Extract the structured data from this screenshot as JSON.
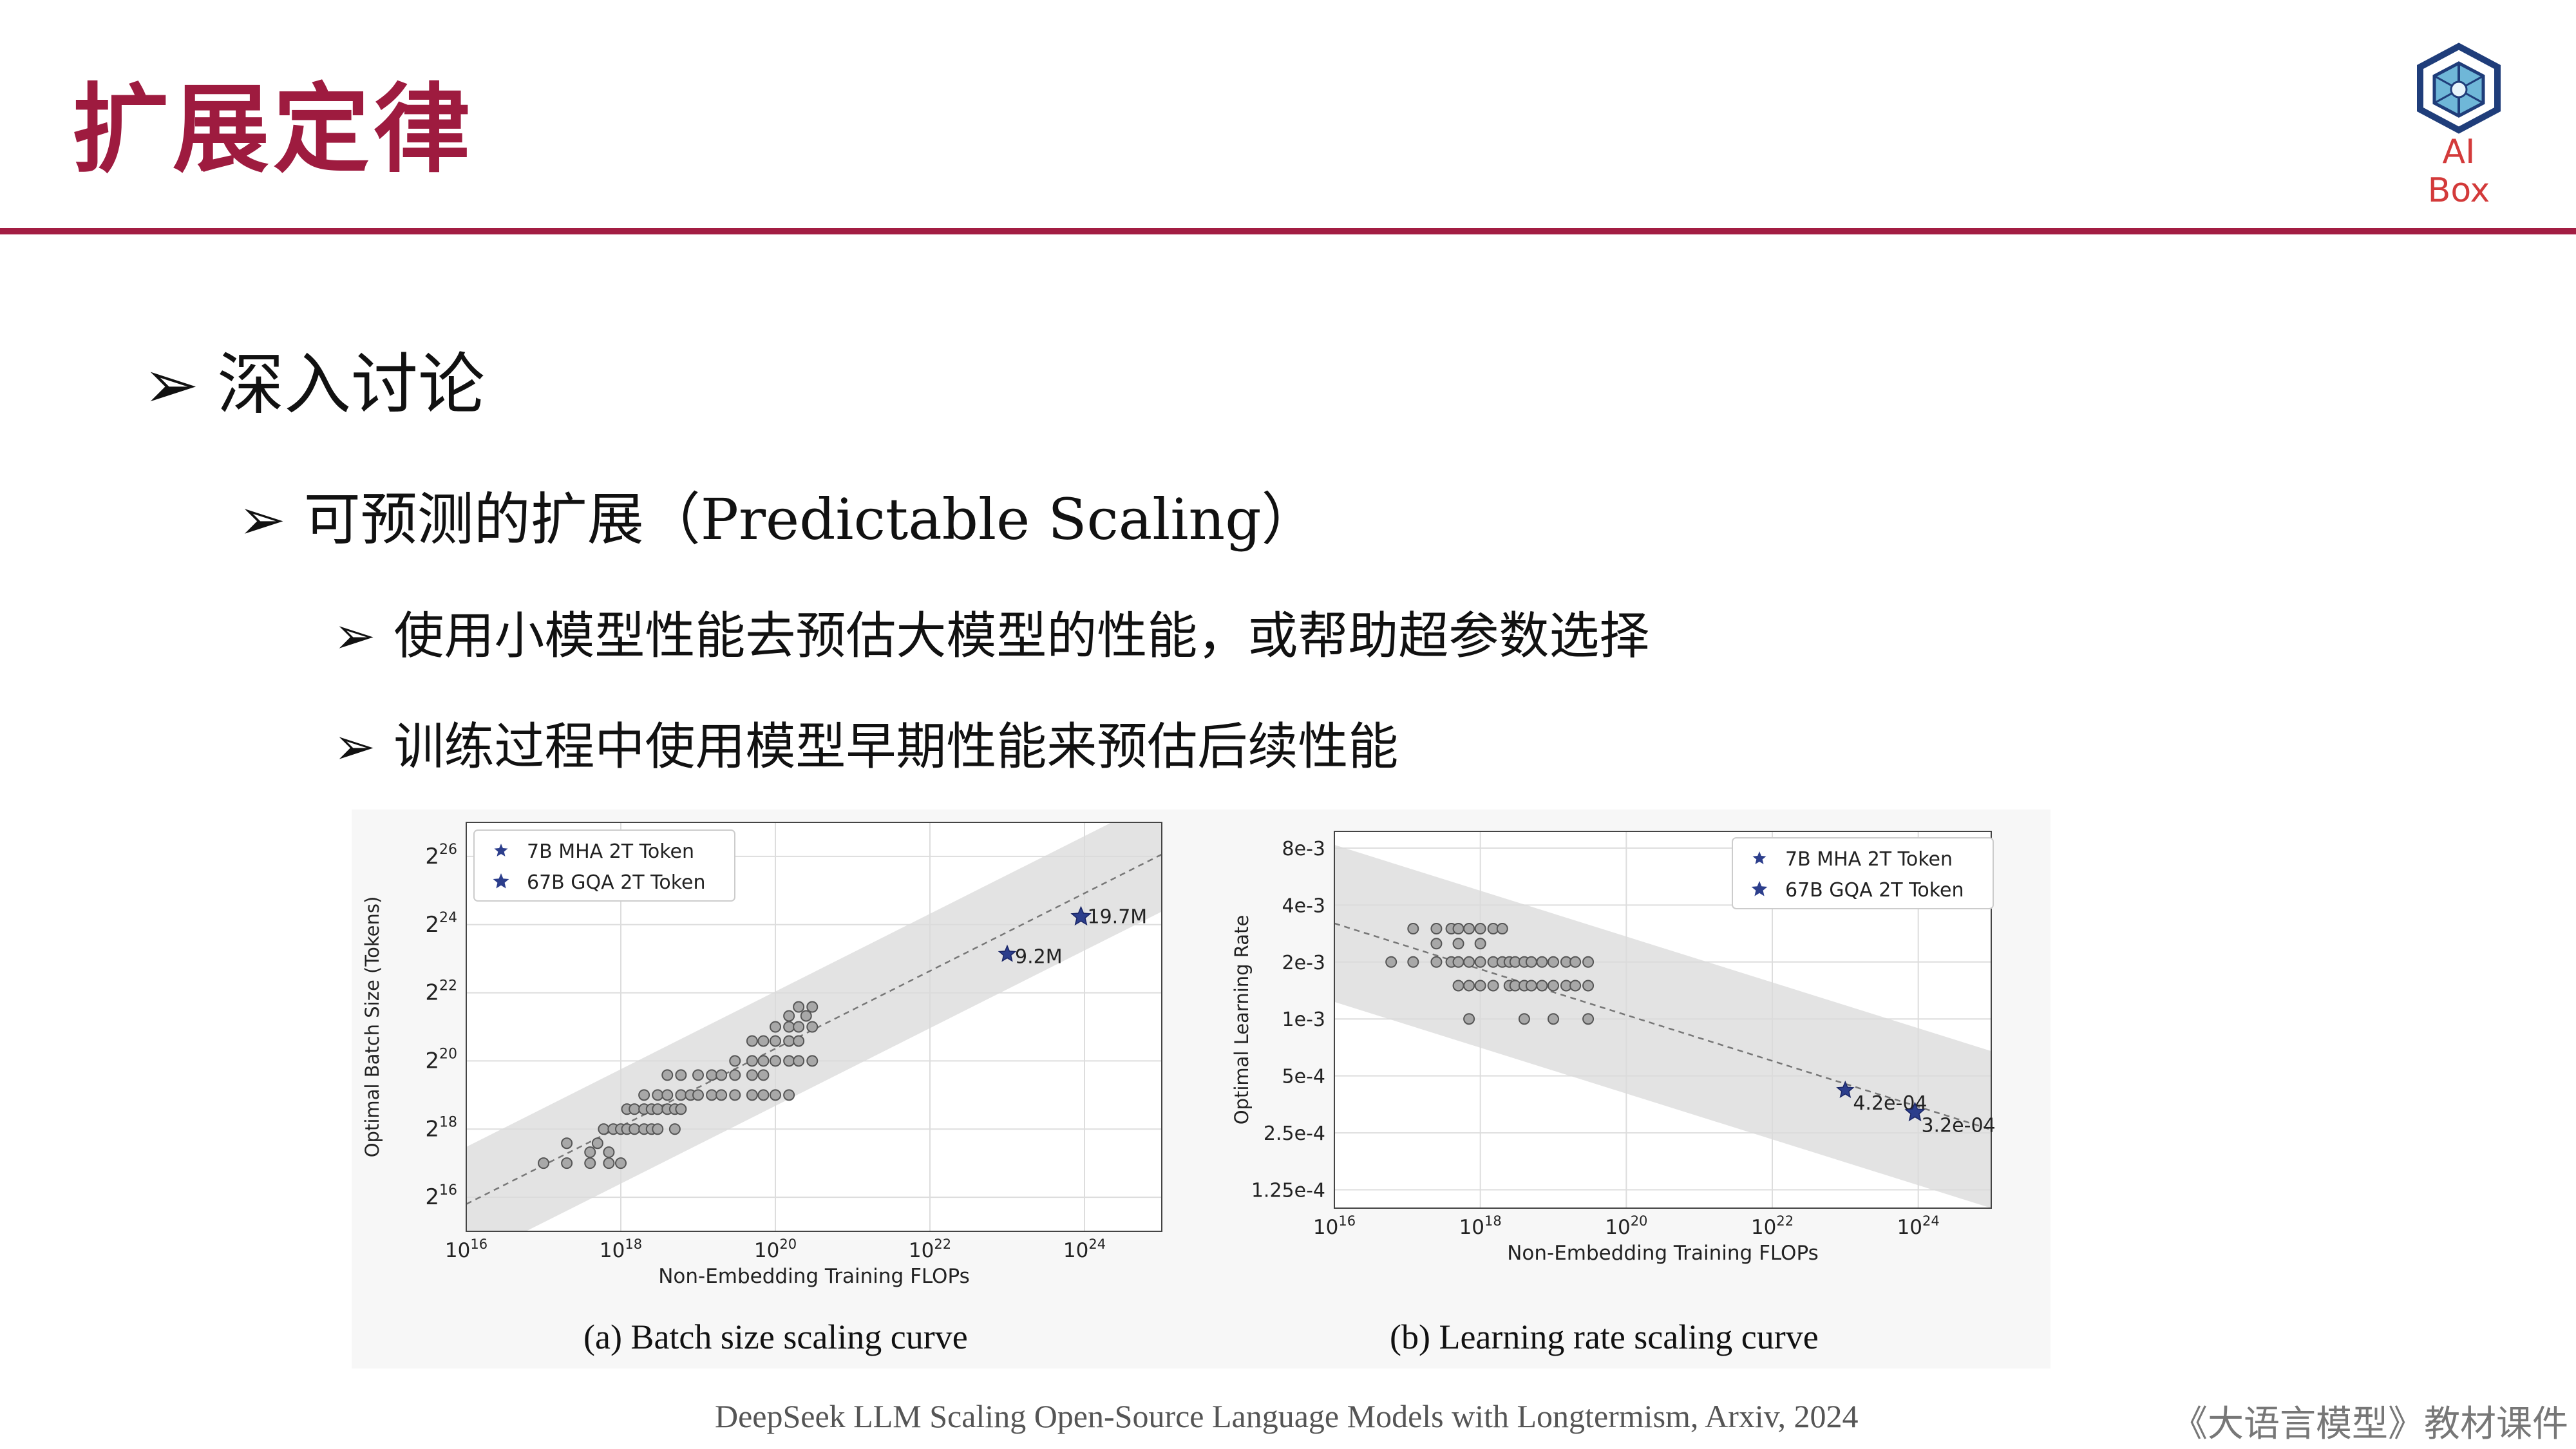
{
  "slide": {
    "title": "扩展定律",
    "logo_text": "AI Box",
    "bullet1": "深入讨论",
    "bullet2": "可预测的扩展（Predictable Scaling）",
    "bullet3": "使用小模型性能去预估大模型的性能，或帮助超参数选择",
    "bullet4": "训练过程中使用模型早期性能来预估后续性能",
    "arrow": "➢",
    "caption_a": "(a)  Batch size scaling curve",
    "caption_b": "(b)  Learning rate scaling curve",
    "source": "DeepSeek LLM Scaling Open-Source Language Models with Longtermism, Arxiv, 2024",
    "footer": "《大语言模型》教材课件"
  },
  "colors": {
    "title": "#9e1b3f",
    "rule": "#a31d43",
    "star": "#2c3e8c",
    "band": "#d9d9d9",
    "point": "#a8a8a8"
  },
  "chart_data": [
    {
      "type": "scatter",
      "xlabel": "Non-Embedding Training FLOPs",
      "ylabel": "Optimal Batch Size (Tokens)",
      "x_scale": "log10",
      "y_scale": "log2",
      "xlim": [
        1e+16,
        1e+25
      ],
      "ylim": [
        32768,
        134217728
      ],
      "xticks": [
        1e+16,
        1e+18,
        1e+20,
        1e+22,
        1e+24
      ],
      "xtick_labels": [
        "10",
        "10",
        "10",
        "10",
        "10"
      ],
      "xtick_exps": [
        "16",
        "18",
        "20",
        "22",
        "24"
      ],
      "yticks": [
        65536,
        262144,
        1048576,
        4194304,
        16777216,
        67108864
      ],
      "ytick_labels": [
        "2",
        "2",
        "2",
        "2",
        "2",
        "2"
      ],
      "ytick_exps": [
        "16",
        "18",
        "20",
        "22",
        "24",
        "26"
      ],
      "grid": true,
      "legend_position": "top-left",
      "series": [
        {
          "name": "7B MHA 2T Token",
          "marker": "star",
          "points": [
            [
              1e+23,
              9200000.0
            ]
          ],
          "labels": [
            "9.2M"
          ]
        },
        {
          "name": "67B GQA 2T Token",
          "marker": "star",
          "points": [
            [
              9e+23,
              19700000.0
            ]
          ],
          "labels": [
            "19.7M"
          ]
        }
      ],
      "grid_points": [
        [
          1e+17,
          131072
        ],
        [
          2e+17,
          131072
        ],
        [
          4e+17,
          131072
        ],
        [
          7e+17,
          131072
        ],
        [
          1e+18,
          131072
        ],
        [
          2e+17,
          196608
        ],
        [
          4e+17,
          163840
        ],
        [
          5e+17,
          196608
        ],
        [
          7e+17,
          163840
        ],
        [
          6e+17,
          262144
        ],
        [
          8e+17,
          262144
        ],
        [
          1e+18,
          262144
        ],
        [
          1.2e+18,
          262144
        ],
        [
          1.5e+18,
          262144
        ],
        [
          2e+18,
          262144
        ],
        [
          2.5e+18,
          262144
        ],
        [
          3e+18,
          262144
        ],
        [
          5e+18,
          262144
        ],
        [
          1.2e+18,
          393216
        ],
        [
          1.5e+18,
          393216
        ],
        [
          2e+18,
          393216
        ],
        [
          2.5e+18,
          393216
        ],
        [
          3e+18,
          393216
        ],
        [
          4e+18,
          393216
        ],
        [
          5e+18,
          393216
        ],
        [
          6e+18,
          393216
        ],
        [
          2e+18,
          524288
        ],
        [
          3e+18,
          524288
        ],
        [
          4e+18,
          524288
        ],
        [
          6e+18,
          524288
        ],
        [
          8e+18,
          524288
        ],
        [
          1e+19,
          524288
        ],
        [
          1.5e+19,
          524288
        ],
        [
          2e+19,
          524288
        ],
        [
          3e+19,
          524288
        ],
        [
          5e+19,
          524288
        ],
        [
          7e+19,
          524288
        ],
        [
          1e+20,
          524288
        ],
        [
          1.5e+20,
          524288
        ],
        [
          4e+18,
          786432
        ],
        [
          6e+18,
          786432
        ],
        [
          1e+19,
          786432
        ],
        [
          1.5e+19,
          786432
        ],
        [
          2e+19,
          786432
        ],
        [
          3e+19,
          786432
        ],
        [
          5e+19,
          786432
        ],
        [
          7e+19,
          786432
        ],
        [
          3e+19,
          1048576
        ],
        [
          5e+19,
          1048576
        ],
        [
          7e+19,
          1048576
        ],
        [
          1e+20,
          1048576
        ],
        [
          1.5e+20,
          1048576
        ],
        [
          2e+20,
          1048576
        ],
        [
          3e+20,
          1048576
        ],
        [
          5e+19,
          1572864
        ],
        [
          7e+19,
          1572864
        ],
        [
          1e+20,
          1572864
        ],
        [
          1.5e+20,
          1572864
        ],
        [
          2e+20,
          1572864
        ],
        [
          1e+20,
          2097152
        ],
        [
          1.5e+20,
          2097152
        ],
        [
          2e+20,
          2097152
        ],
        [
          3e+20,
          2097152
        ],
        [
          2e+20,
          3145728
        ],
        [
          3e+20,
          3145728
        ],
        [
          1.5e+20,
          2621440
        ],
        [
          2.5e+20,
          2621440
        ]
      ],
      "fit_line": [
        [
          1e+16,
          57000
        ],
        [
          1e+25,
          70000000
        ]
      ],
      "band_width_factor": 3.2
    },
    {
      "type": "scatter",
      "xlabel": "Non-Embedding Training FLOPs",
      "ylabel": "Optimal Learning Rate",
      "x_scale": "log10",
      "y_scale": "log2",
      "xlim": [
        1e+16,
        1e+25
      ],
      "ylim": [
        0.0001,
        0.0098
      ],
      "xticks": [
        1e+16,
        1e+18,
        1e+20,
        1e+22,
        1e+24
      ],
      "xtick_labels": [
        "10",
        "10",
        "10",
        "10",
        "10"
      ],
      "xtick_exps": [
        "16",
        "18",
        "20",
        "22",
        "24"
      ],
      "yticks": [
        0.000125,
        0.00025,
        0.0005,
        0.001,
        0.002,
        0.004,
        0.008
      ],
      "ytick_labels": [
        "1.25e-4",
        "2.5e-4",
        "5e-4",
        "1e-3",
        "2e-3",
        "4e-3",
        "8e-3"
      ],
      "grid": true,
      "legend_position": "top-right",
      "series": [
        {
          "name": "7B MHA 2T Token",
          "marker": "star",
          "points": [
            [
              1e+23,
              0.00042
            ]
          ],
          "labels": [
            "4.2e-04"
          ]
        },
        {
          "name": "67B GQA 2T Token",
          "marker": "star",
          "points": [
            [
              9e+23,
              0.00032
            ]
          ],
          "labels": [
            "3.2e-04"
          ]
        }
      ],
      "grid_points": [
        [
          6e+16,
          0.002
        ],
        [
          1.2e+17,
          0.002
        ],
        [
          2.5e+17,
          0.002
        ],
        [
          4e+17,
          0.002
        ],
        [
          5e+17,
          0.002
        ],
        [
          7e+17,
          0.002
        ],
        [
          1e+18,
          0.002
        ],
        [
          1.5e+18,
          0.002
        ],
        [
          2e+18,
          0.002
        ],
        [
          2.5e+18,
          0.002
        ],
        [
          3e+18,
          0.002
        ],
        [
          4e+18,
          0.002
        ],
        [
          5e+18,
          0.002
        ],
        [
          7e+18,
          0.002
        ],
        [
          1e+19,
          0.002
        ],
        [
          1.5e+19,
          0.002
        ],
        [
          2e+19,
          0.002
        ],
        [
          3e+19,
          0.002
        ],
        [
          1.2e+17,
          0.003
        ],
        [
          2.5e+17,
          0.003
        ],
        [
          4e+17,
          0.003
        ],
        [
          5e+17,
          0.003
        ],
        [
          7e+17,
          0.003
        ],
        [
          1e+18,
          0.003
        ],
        [
          1.5e+18,
          0.003
        ],
        [
          2e+18,
          0.003
        ],
        [
          2.5e+17,
          0.0025
        ],
        [
          5e+17,
          0.0025
        ],
        [
          1e+18,
          0.0025
        ],
        [
          5e+17,
          0.0015
        ],
        [
          7e+17,
          0.0015
        ],
        [
          1e+18,
          0.0015
        ],
        [
          1.5e+18,
          0.0015
        ],
        [
          2.5e+18,
          0.0015
        ],
        [
          3e+18,
          0.0015
        ],
        [
          4e+18,
          0.0015
        ],
        [
          5e+18,
          0.0015
        ],
        [
          7e+18,
          0.0015
        ],
        [
          1e+19,
          0.0015
        ],
        [
          1.5e+19,
          0.0015
        ],
        [
          2e+19,
          0.0015
        ],
        [
          3e+19,
          0.0015
        ],
        [
          7e+17,
          0.001
        ],
        [
          4e+18,
          0.001
        ],
        [
          1e+19,
          0.001
        ],
        [
          3e+19,
          0.001
        ]
      ],
      "fit_line": [
        [
          1e+16,
          0.0032
        ],
        [
          1e+25,
          0.00026
        ]
      ],
      "band_width_factor": 2.6
    }
  ]
}
